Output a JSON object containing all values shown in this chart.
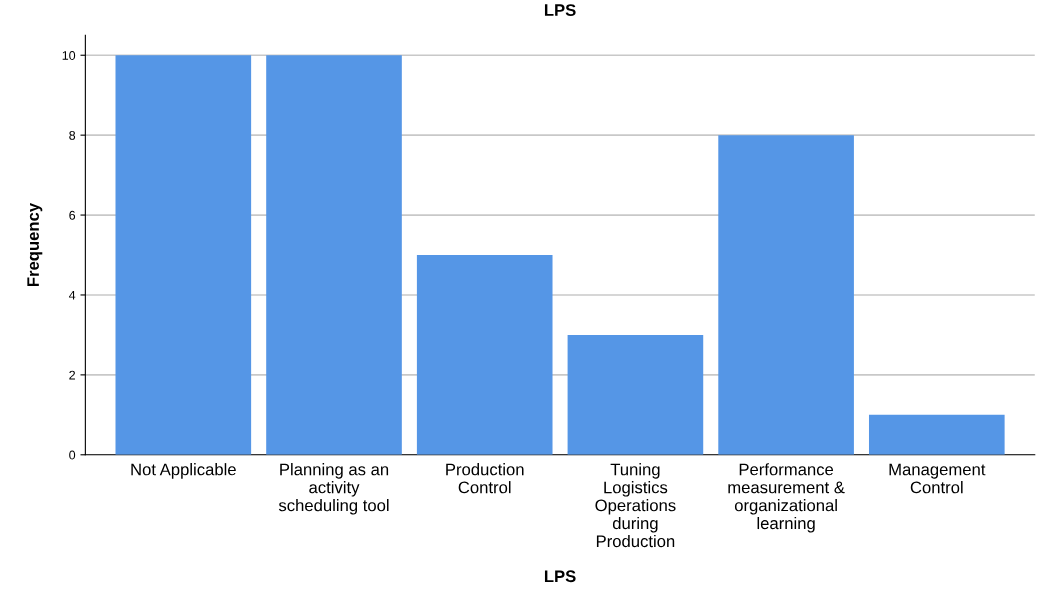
{
  "chart_data": {
    "type": "bar",
    "title": "LPS",
    "xlabel": "LPS",
    "ylabel": "Frequency",
    "categories": [
      "Not Applicable",
      "Planning as an activity scheduling tool",
      "Production Control",
      "Tuning Logistics Operations during Production",
      "Performance measurement & organizational learning",
      "Management Control"
    ],
    "values": [
      10,
      10,
      5,
      3,
      8,
      1
    ],
    "color": "#5596e6",
    "ylim": [
      0,
      10.5
    ],
    "yticks": [
      0,
      2,
      4,
      6,
      8,
      10
    ],
    "grid": "y",
    "legend": false
  }
}
